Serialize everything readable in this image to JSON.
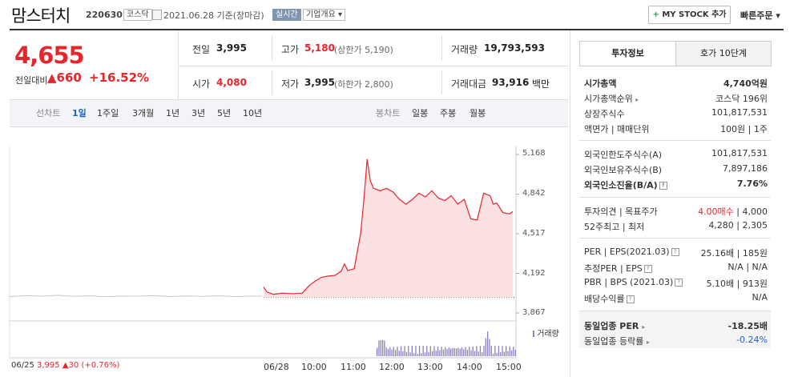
{
  "header": {
    "stock_name": "맘스터치",
    "code": "220630",
    "market_tag": "코스닥",
    "date_text": "2021.06.28 기준(장마감)",
    "realtime_tag": "실시간",
    "company_tag": "기업개요",
    "my_stock_label": "MY STOCK 추가",
    "quick_order_label": "빠른주문"
  },
  "price": {
    "current": "4,655",
    "vs_label": "전일대비",
    "change": "660",
    "change_pct": "+16.52%"
  },
  "quote": {
    "prev_label": "전일",
    "prev": "3,995",
    "high_label": "고가",
    "high": "5,180",
    "upper_limit": "(상한가 5,190)",
    "volume_label": "거래량",
    "volume": "19,793,593",
    "open_label": "시가",
    "open": "4,080",
    "low_label": "저가",
    "low": "3,995",
    "lower_limit": "(하한가 2,800)",
    "amount_label": "거래대금",
    "amount": "93,916",
    "amount_unit": "백만"
  },
  "period_tabs": {
    "label": "선차트",
    "items": [
      "1일",
      "1주일",
      "3개월",
      "1년",
      "3년",
      "5년",
      "10년"
    ],
    "selected": "1일",
    "candle_label": "봉차트",
    "candle_items": [
      "일봉",
      "주봉",
      "월봉"
    ]
  },
  "right_tabs": [
    "투자정보",
    "호가 10단계"
  ],
  "invest_info": {
    "market_cap_label": "시가총액",
    "market_cap": "4,740억원",
    "rank_label": "시가총액순위",
    "rank": "코스닥 196위",
    "shares_label": "상장주식수",
    "shares": "101,817,531",
    "par_label": "액면가 | 매매단위",
    "par": "100원 | 1주",
    "foreign_limit_label": "외국인한도주식수(A)",
    "foreign_limit": "101,817,531",
    "foreign_hold_label": "외국인보유주식수(B)",
    "foreign_hold": "7,897,186",
    "foreign_ratio_label": "외국인소진율(B/A)",
    "foreign_ratio": "7.76%",
    "opinion_label": "투자의견 | 목표주가",
    "opinion": "4.00매수",
    "target": "4,000",
    "range_label": "52주최고 | 최저",
    "range": "4,280 | 2,305",
    "per_label": "PER | EPS(2021.03)",
    "per": "25.16배 | 185원",
    "est_per_label": "추정PER | EPS",
    "est_per": "N/A | N/A",
    "pbr_label": "PBR | BPS (2021.03)",
    "pbr": "5.10배 | 913원",
    "div_label": "배당수익률",
    "div": "N/A",
    "sector_per_label": "동일업종 PER",
    "sector_per": "-18.25배",
    "sector_rate_label": "동일업종 등락률",
    "sector_rate": "-0.24%"
  },
  "chart_data": {
    "type": "line",
    "x_ticks": [
      "06/25",
      "06/28",
      "10:00",
      "11:00",
      "12:00",
      "13:00",
      "14:00",
      "15:00"
    ],
    "y_ticks": [
      5168,
      4842,
      4517,
      4192,
      3867
    ],
    "ylim": [
      3867,
      5168
    ],
    "prev_close": 3995,
    "volume_label": "거래량",
    "prev_day_series": [
      [
        0,
        4000
      ],
      [
        20,
        4010
      ],
      [
        40,
        4005
      ],
      [
        60,
        4012
      ],
      [
        80,
        4003
      ],
      [
        100,
        4008
      ],
      [
        120,
        4000
      ],
      [
        140,
        4006
      ],
      [
        160,
        4004
      ],
      [
        180,
        4010
      ],
      [
        200,
        4002
      ],
      [
        220,
        4007
      ],
      [
        240,
        4003
      ],
      [
        260,
        4008
      ],
      [
        280,
        4001
      ],
      [
        300,
        4005
      ],
      [
        315,
        4006
      ]
    ],
    "today_series": [
      [
        "09:00",
        4080
      ],
      [
        "09:05",
        4040
      ],
      [
        "09:15",
        4020
      ],
      [
        "09:30",
        4030
      ],
      [
        "09:45",
        4025
      ],
      [
        "10:00",
        4030
      ],
      [
        "10:10",
        4090
      ],
      [
        "10:20",
        4130
      ],
      [
        "10:30",
        4160
      ],
      [
        "10:40",
        4170
      ],
      [
        "10:50",
        4175
      ],
      [
        "11:00",
        4210
      ],
      [
        "11:05",
        4270
      ],
      [
        "11:10",
        4215
      ],
      [
        "11:20",
        4230
      ],
      [
        "11:30",
        4520
      ],
      [
        "11:35",
        4800
      ],
      [
        "11:40",
        5130
      ],
      [
        "11:45",
        4950
      ],
      [
        "11:50",
        4890
      ],
      [
        "12:00",
        4870
      ],
      [
        "12:10",
        4890
      ],
      [
        "12:20",
        4860
      ],
      [
        "12:30",
        4800
      ],
      [
        "12:40",
        4760
      ],
      [
        "12:50",
        4800
      ],
      [
        "13:00",
        4850
      ],
      [
        "13:10",
        4820
      ],
      [
        "13:20",
        4870
      ],
      [
        "13:30",
        4810
      ],
      [
        "13:40",
        4790
      ],
      [
        "13:50",
        4830
      ],
      [
        "14:00",
        4760
      ],
      [
        "14:10",
        4800
      ],
      [
        "14:20",
        4640
      ],
      [
        "14:30",
        4630
      ],
      [
        "14:40",
        4850
      ],
      [
        "14:50",
        4830
      ],
      [
        "14:55",
        4760
      ],
      [
        "15:00",
        4770
      ],
      [
        "15:10",
        4690
      ],
      [
        "15:20",
        4680
      ],
      [
        "15:25",
        4700
      ]
    ],
    "prev_day_label": "06/25",
    "prev_day_price": "3,995",
    "prev_day_change": "30",
    "prev_day_pct": "(+0.76%)"
  },
  "colors": {
    "red": "#e8242d",
    "blue": "#1f5fbf",
    "fill": "#fbe1e1",
    "volume": "#8b7fc2"
  }
}
